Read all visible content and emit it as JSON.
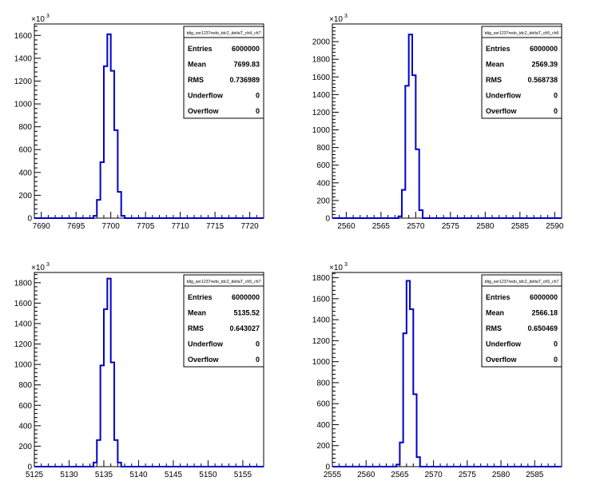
{
  "chart_data": [
    {
      "type": "histogram",
      "title": "",
      "xlabel": "",
      "ylabel": "",
      "y_multiplier": "×10",
      "y_multiplier_exp": "3",
      "xlim": [
        7689,
        7722
      ],
      "ylim": [
        0,
        1700
      ],
      "xticks": [
        7690,
        7695,
        7700,
        7705,
        7710,
        7715,
        7720
      ],
      "yticks": [
        0,
        200,
        400,
        600,
        800,
        1000,
        1200,
        1400,
        1600
      ],
      "bin_width": 0.5,
      "bins_x": [
        7697.5,
        7698,
        7698.5,
        7699,
        7699.5,
        7700,
        7700.5,
        7701,
        7701.5,
        7702
      ],
      "bins_y": [
        20,
        160,
        490,
        1330,
        1610,
        1290,
        770,
        230,
        20,
        0
      ],
      "color": "#0000cc",
      "stats": {
        "name": "tdig_ser1237redo_tdc2_deltaT_ch4_ch7",
        "rows": [
          {
            "label": "Entries",
            "value": "6000000"
          },
          {
            "label": "Mean",
            "value": "7699.83"
          },
          {
            "label": "RMS",
            "value": "0.736989"
          },
          {
            "label": "Underflow",
            "value": "0"
          },
          {
            "label": "Overflow",
            "value": "0"
          }
        ]
      }
    },
    {
      "type": "histogram",
      "title": "",
      "xlabel": "",
      "ylabel": "",
      "y_multiplier": "×10",
      "y_multiplier_exp": "3",
      "xlim": [
        2558,
        2591
      ],
      "ylim": [
        0,
        2200
      ],
      "xticks": [
        2560,
        2565,
        2570,
        2575,
        2580,
        2585,
        2590
      ],
      "yticks": [
        0,
        200,
        400,
        600,
        800,
        1000,
        1200,
        1400,
        1600,
        1800,
        2000
      ],
      "bin_width": 0.5,
      "bins_x": [
        2567.5,
        2568,
        2568.5,
        2569,
        2569.5,
        2570,
        2570.5,
        2571
      ],
      "bins_y": [
        20,
        320,
        1500,
        2080,
        1620,
        780,
        90,
        0
      ],
      "color": "#0000cc",
      "stats": {
        "name": "tdig_ser1237redo_tdc2_deltaT_ch5_ch6",
        "rows": [
          {
            "label": "Entries",
            "value": "6000000"
          },
          {
            "label": "Mean",
            "value": "2569.39"
          },
          {
            "label": "RMS",
            "value": "0.568738"
          },
          {
            "label": "Underflow",
            "value": "0"
          },
          {
            "label": "Overflow",
            "value": "0"
          }
        ]
      }
    },
    {
      "type": "histogram",
      "title": "",
      "xlabel": "",
      "ylabel": "",
      "y_multiplier": "×10",
      "y_multiplier_exp": "3",
      "xlim": [
        5125,
        5158
      ],
      "ylim": [
        0,
        1900
      ],
      "xticks": [
        5125,
        5130,
        5135,
        5140,
        5145,
        5150,
        5155
      ],
      "yticks": [
        0,
        200,
        400,
        600,
        800,
        1000,
        1200,
        1400,
        1600,
        1800
      ],
      "bin_width": 0.5,
      "bins_x": [
        5133.5,
        5134,
        5134.5,
        5135,
        5135.5,
        5136,
        5136.5,
        5137
      ],
      "bins_y": [
        40,
        260,
        990,
        1540,
        1840,
        1020,
        260,
        40
      ],
      "color": "#0000cc",
      "stats": {
        "name": "tdig_ser1237redo_tdc2_deltaT_ch5_ch7",
        "rows": [
          {
            "label": "Entries",
            "value": "6000000"
          },
          {
            "label": "Mean",
            "value": "5135.52"
          },
          {
            "label": "RMS",
            "value": "0.643027"
          },
          {
            "label": "Underflow",
            "value": "0"
          },
          {
            "label": "Overflow",
            "value": "0"
          }
        ]
      }
    },
    {
      "type": "histogram",
      "title": "",
      "xlabel": "",
      "ylabel": "",
      "y_multiplier": "×10",
      "y_multiplier_exp": "3",
      "xlim": [
        2555,
        2589
      ],
      "ylim": [
        0,
        1850
      ],
      "xticks": [
        2555,
        2560,
        2565,
        2570,
        2575,
        2580,
        2585
      ],
      "yticks": [
        0,
        200,
        400,
        600,
        800,
        1000,
        1200,
        1400,
        1600,
        1800
      ],
      "bin_width": 0.5,
      "bins_x": [
        2564.5,
        2565,
        2565.5,
        2566,
        2566.5,
        2567,
        2567.5,
        2568
      ],
      "bins_y": [
        20,
        230,
        1270,
        1770,
        1500,
        690,
        90,
        0
      ],
      "color": "#0000cc",
      "stats": {
        "name": "tdig_ser1237redo_tdc2_deltaT_ch5_ch7",
        "rows": [
          {
            "label": "Entries",
            "value": "6000000"
          },
          {
            "label": "Mean",
            "value": "2566.18"
          },
          {
            "label": "RMS",
            "value": "0.650469"
          },
          {
            "label": "Underflow",
            "value": "0"
          },
          {
            "label": "Overflow",
            "value": "0"
          }
        ]
      }
    }
  ]
}
